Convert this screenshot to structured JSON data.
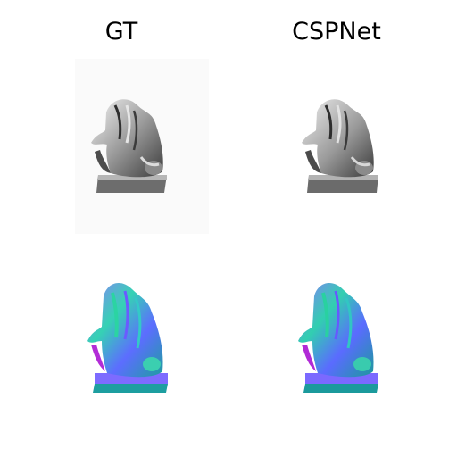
{
  "columns": {
    "left_title": "GT",
    "right_title": "CSPNet"
  },
  "panels": {
    "row_1": {
      "kind": "shaded-render",
      "palette": [
        "#f2f2f2",
        "#a5a5a5",
        "#4a4a4a"
      ]
    },
    "row_2": {
      "kind": "normal-map",
      "palette": [
        "#8f7cff",
        "#35d2b4",
        "#5c6dff",
        "#b22cd7",
        "#1d9ea0"
      ]
    }
  }
}
